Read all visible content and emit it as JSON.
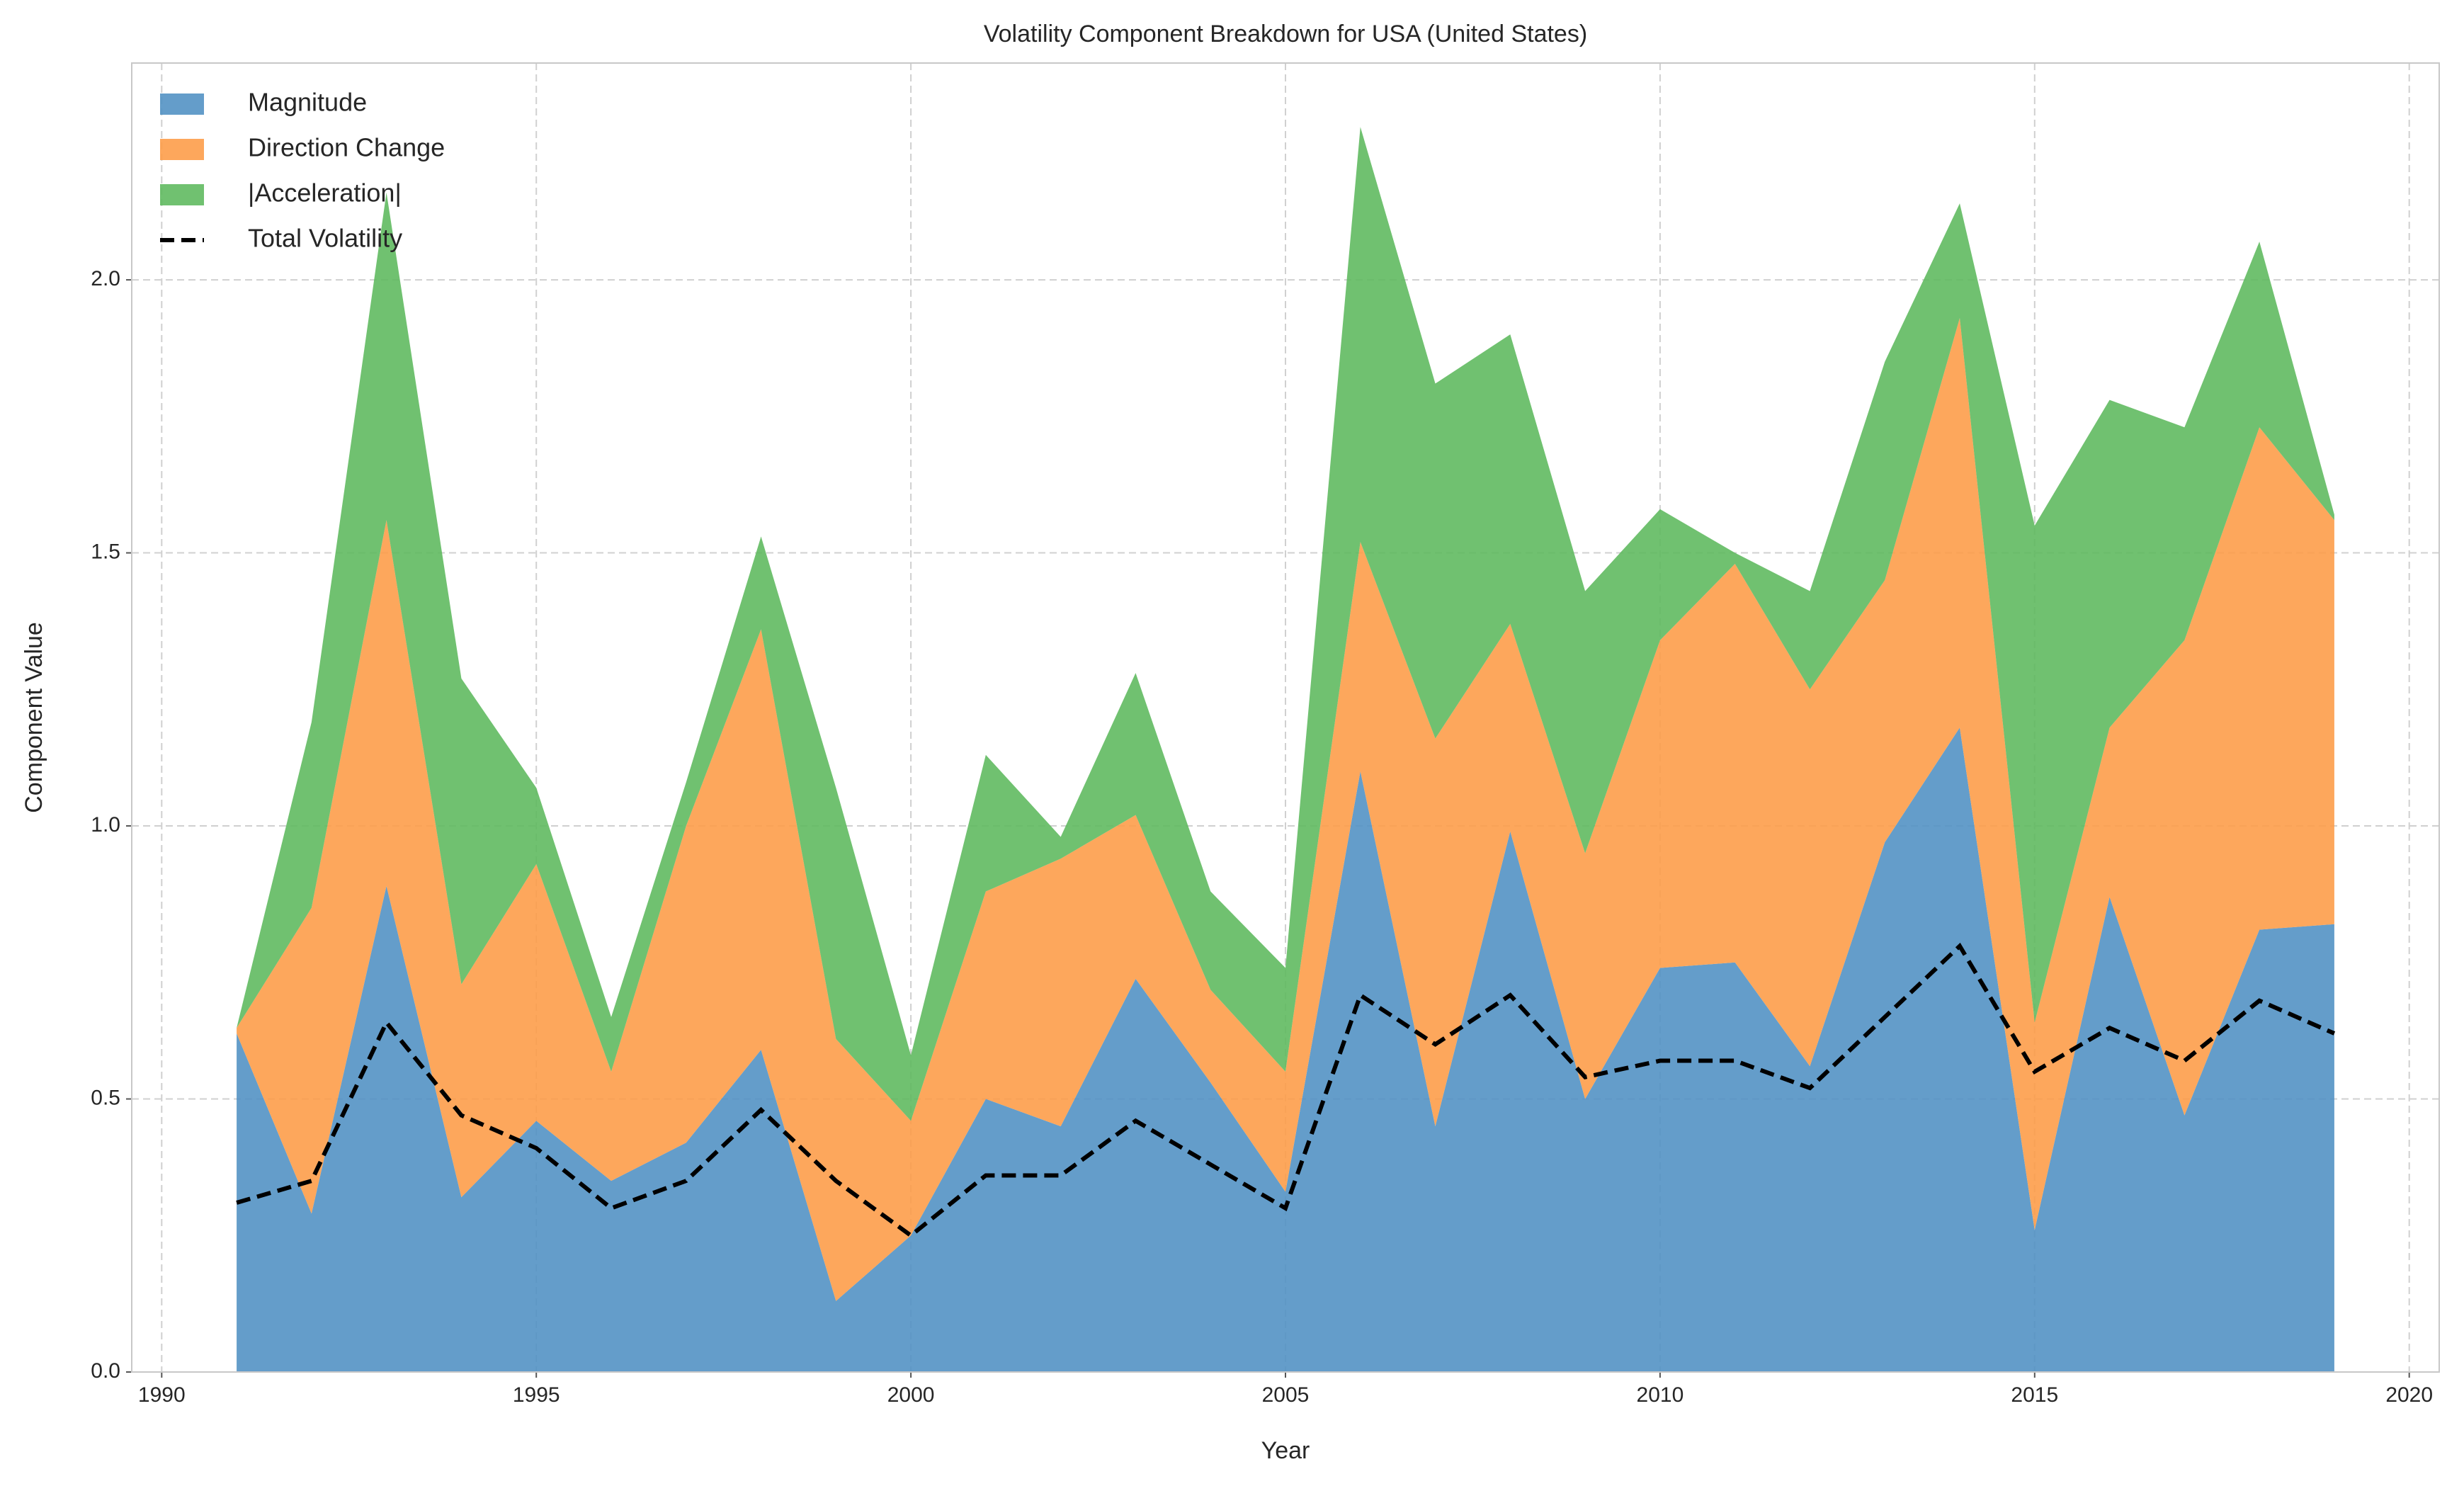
{
  "chart_data": {
    "type": "area",
    "title": "Volatility Component Breakdown for USA (United States)",
    "xlabel": "Year",
    "ylabel": "Component Value",
    "x": [
      1991,
      1992,
      1993,
      1994,
      1995,
      1996,
      1997,
      1998,
      1999,
      2000,
      2001,
      2002,
      2003,
      2004,
      2005,
      2006,
      2007,
      2008,
      2009,
      2010,
      2011,
      2012,
      2013,
      2014,
      2015,
      2016,
      2017,
      2018,
      2019
    ],
    "series": [
      {
        "name": "Magnitude",
        "color": "#4f8fc3",
        "kind": "stacked-area",
        "values": [
          0.62,
          0.29,
          0.89,
          0.32,
          0.46,
          0.35,
          0.42,
          0.59,
          0.13,
          0.25,
          0.5,
          0.45,
          0.72,
          0.53,
          0.33,
          1.1,
          0.45,
          0.99,
          0.5,
          0.74,
          0.75,
          0.56,
          0.97,
          1.18,
          0.26,
          0.87,
          0.47,
          0.81,
          0.82
        ]
      },
      {
        "name": "Direction Change",
        "color": "#fd9b45",
        "kind": "stacked-area",
        "values": [
          0.01,
          0.56,
          0.67,
          0.39,
          0.47,
          0.2,
          0.58,
          0.77,
          0.48,
          0.21,
          0.38,
          0.49,
          0.3,
          0.17,
          0.22,
          0.42,
          0.71,
          0.38,
          0.45,
          0.6,
          0.73,
          0.69,
          0.48,
          0.75,
          0.38,
          0.31,
          0.87,
          0.92,
          0.74
        ]
      },
      {
        "name": "|Acceleration|",
        "color": "#5cb85c",
        "kind": "stacked-area",
        "values": [
          0.0,
          0.34,
          0.6,
          0.56,
          0.14,
          0.1,
          0.08,
          0.17,
          0.46,
          0.12,
          0.25,
          0.04,
          0.26,
          0.18,
          0.19,
          0.76,
          0.65,
          0.53,
          0.48,
          0.24,
          0.02,
          0.18,
          0.4,
          0.21,
          0.91,
          0.6,
          0.39,
          0.34,
          0.01
        ]
      },
      {
        "name": "Total Volatility",
        "color": "#000000",
        "kind": "dashed-line",
        "values": [
          0.31,
          0.35,
          0.64,
          0.47,
          0.41,
          0.3,
          0.35,
          0.48,
          0.35,
          0.25,
          0.36,
          0.36,
          0.46,
          0.38,
          0.3,
          0.69,
          0.6,
          0.69,
          0.54,
          0.57,
          0.57,
          0.52,
          0.65,
          0.78,
          0.55,
          0.63,
          0.57,
          0.68,
          0.62
        ]
      }
    ],
    "xlim": [
      1989.6,
      2020.4
    ],
    "ylim": [
      0,
      2.397
    ],
    "xticks": [
      1990,
      1995,
      2000,
      2005,
      2010,
      2015,
      2020
    ],
    "yticks": [
      {
        "value": 0,
        "label": "0.0"
      },
      0.5,
      {
        "value": 1,
        "label": "1.0"
      },
      1.5,
      {
        "value": 2,
        "label": "2.0"
      }
    ],
    "grid": true,
    "legend": "upper-left"
  }
}
